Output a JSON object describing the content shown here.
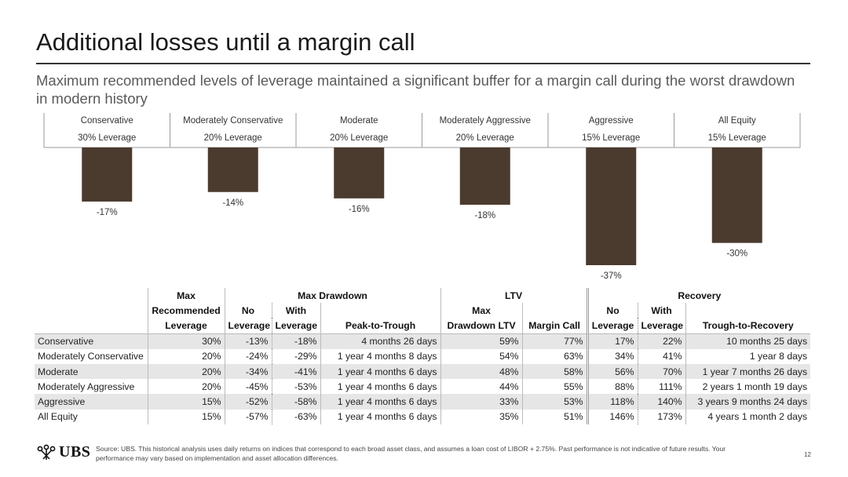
{
  "header": {
    "title": "Additional losses until a margin call",
    "subtitle": "Maximum recommended levels of leverage maintained a significant buffer for a margin call during the worst drawdown in modern history"
  },
  "chart_data": {
    "type": "bar",
    "categories": [
      "Conservative",
      "Moderately Conservative",
      "Moderate",
      "Moderately Aggressive",
      "Aggressive",
      "All Equity"
    ],
    "category_sublabels": [
      "30% Leverage",
      "20% Leverage",
      "20% Leverage",
      "20% Leverage",
      "15% Leverage",
      "15% Leverage"
    ],
    "values": [
      -17,
      -14,
      -16,
      -18,
      -37,
      -30
    ],
    "value_labels": [
      "-17%",
      "-14%",
      "-16%",
      "-18%",
      "-37%",
      "-30%"
    ],
    "ylim": [
      -37,
      0
    ],
    "bar_color": "#4b3a2e",
    "legend": "none",
    "grid": false
  },
  "table": {
    "header_groups": {
      "max": "Max",
      "max_drawdown": "Max Drawdown",
      "ltv": "LTV",
      "recovery": "Recovery"
    },
    "header_row2": {
      "recommended": "Recommended",
      "no": "No",
      "with": "With",
      "ltv_max": "Max",
      "rec_no": "No",
      "rec_with": "With"
    },
    "header_row3": {
      "leverage": "Leverage",
      "dd_no": "Leverage",
      "dd_with": "Leverage",
      "peak_to_trough": "Peak-to-Trough",
      "max_drawdown_ltv": "Drawdown LTV",
      "margin_call": "Margin Call",
      "rec_no": "Leverage",
      "rec_with": "Leverage",
      "trough_to_recovery": "Trough-to-Recovery"
    },
    "rows": [
      [
        "Conservative",
        "30%",
        "-13%",
        "-18%",
        "4 months 26 days",
        "59%",
        "77%",
        "17%",
        "22%",
        "10 months 25 days"
      ],
      [
        "Moderately Conservative",
        "20%",
        "-24%",
        "-29%",
        "1 year 4 months 8 days",
        "54%",
        "63%",
        "34%",
        "41%",
        "1 year 8 days"
      ],
      [
        "Moderate",
        "20%",
        "-34%",
        "-41%",
        "1 year 4 months 6 days",
        "48%",
        "58%",
        "56%",
        "70%",
        "1 year 7 months 26 days"
      ],
      [
        "Moderately Aggressive",
        "20%",
        "-45%",
        "-53%",
        "1 year 4 months 6 days",
        "44%",
        "55%",
        "88%",
        "111%",
        "2 years 1 month 19 days"
      ],
      [
        "Aggressive",
        "15%",
        "-52%",
        "-58%",
        "1 year 4 months 6 days",
        "33%",
        "53%",
        "118%",
        "140%",
        "3 years 9 months 24 days"
      ],
      [
        "All Equity",
        "15%",
        "-57%",
        "-63%",
        "1 year 4 months 6 days",
        "35%",
        "51%",
        "146%",
        "173%",
        "4 years 1 month 2 days"
      ]
    ]
  },
  "footer": {
    "logo_text": "UBS",
    "source": "Source: UBS. This historical analysis uses daily returns on indices that correspond to each broad asset class, and assumes a loan cost of LIBOR + 2.75%. Past performance is not indicative of future results. Your performance may vary based on implementation and asset allocation differences.",
    "page_number": "12"
  },
  "icons": {
    "logo": "ubs-keys-icon"
  }
}
